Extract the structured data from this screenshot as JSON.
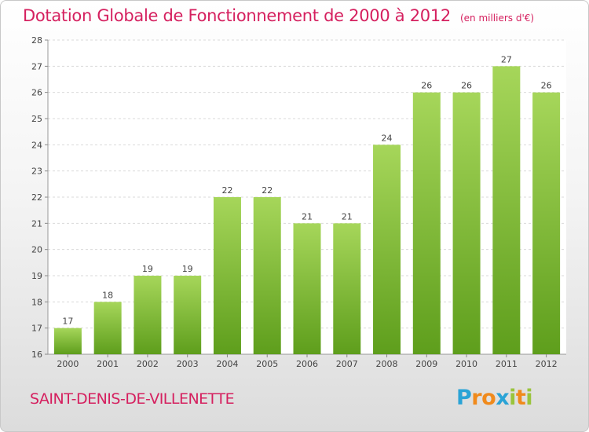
{
  "title": "Dotation Globale de Fonctionnement de 2000 à 2012",
  "subtitle": "(en milliers d'€)",
  "town": "SAINT-DENIS-DE-VILLENETTE",
  "logo": {
    "letters": [
      "P",
      "r",
      "o",
      "x",
      "i",
      "t",
      "i"
    ],
    "colors": [
      "#2aa3d6",
      "#f08a1c",
      "#f08a1c",
      "#2aa3d6",
      "#9ac43c",
      "#f08a1c",
      "#9ac43c"
    ]
  },
  "colors": {
    "accent": "#d5205f",
    "bar_light": "#a6d65a",
    "bar_dark": "#5e9e1c",
    "grid": "#d9d9d9"
  },
  "chart_data": {
    "type": "bar",
    "categories": [
      "2000",
      "2001",
      "2002",
      "2003",
      "2004",
      "2005",
      "2006",
      "2007",
      "2008",
      "2009",
      "2010",
      "2011",
      "2012"
    ],
    "values": [
      17,
      18,
      19,
      19,
      22,
      22,
      21,
      21,
      24,
      26,
      26,
      27,
      26
    ],
    "ylim": [
      16,
      28
    ],
    "yticks": [
      16,
      17,
      18,
      19,
      20,
      21,
      22,
      23,
      24,
      25,
      26,
      27,
      28
    ],
    "grid": "horizontal dashed",
    "xlabel": "",
    "ylabel": ""
  }
}
